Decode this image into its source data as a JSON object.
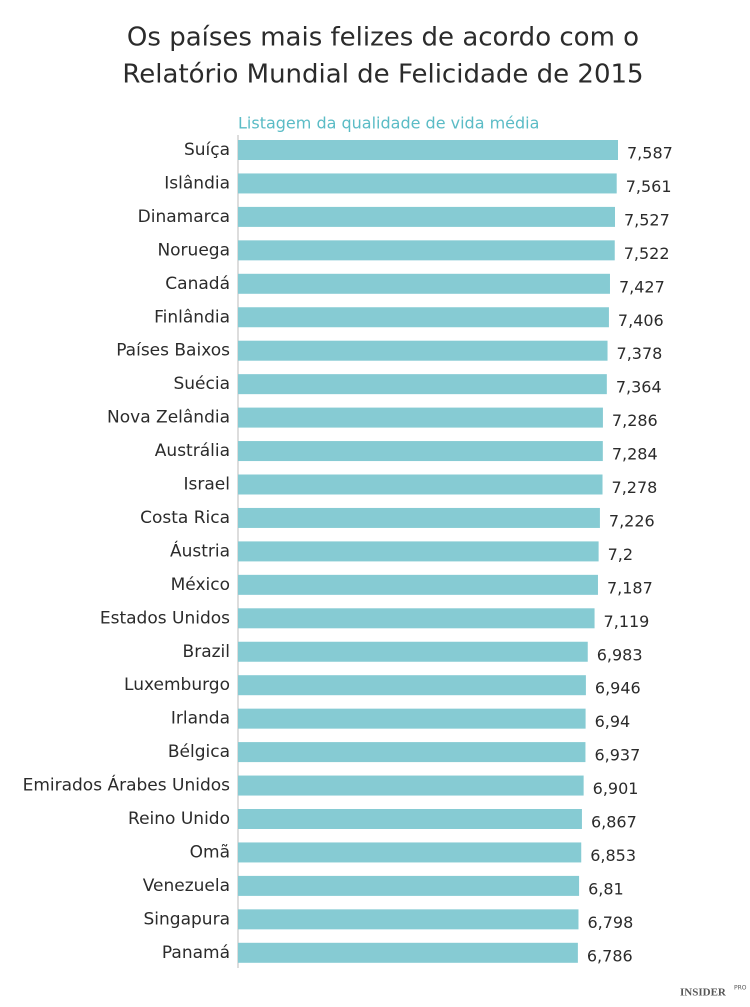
{
  "chart_data": {
    "type": "hbar",
    "title": [
      "Os países mais felizes de acordo com o",
      "Relatório Mundial de Felicidade de 2015"
    ],
    "subtitle": "Listagem da qualidade de vida média",
    "categories": [
      "Suíça",
      "Islândia",
      "Dinamarca",
      "Noruega",
      "Canadá",
      "Finlândia",
      "Países Baixos",
      "Suécia",
      "Nova Zelândia",
      "Austrália",
      "Israel",
      "Costa Rica",
      "Áustria",
      "México",
      "Estados Unidos",
      "Brazil",
      "Luxemburgo",
      "Irlanda",
      "Bélgica",
      "Emirados Árabes Unidos",
      "Reino Unido",
      "Omã",
      "Venezuela",
      "Singapura",
      "Panamá"
    ],
    "values": [
      7.587,
      7.561,
      7.527,
      7.522,
      7.427,
      7.406,
      7.378,
      7.364,
      7.286,
      7.284,
      7.278,
      7.226,
      7.2,
      7.187,
      7.119,
      6.983,
      6.946,
      6.94,
      6.937,
      6.901,
      6.867,
      6.853,
      6.81,
      6.798,
      6.786
    ],
    "value_labels": [
      "7,587",
      "7,561",
      "7,527",
      "7,522",
      "7,427",
      "7,406",
      "7,378",
      "7,364",
      "7,286",
      "7,284",
      "7,278",
      "7,226",
      "7,2",
      "7,187",
      "7,119",
      "6,983",
      "6,946",
      "6,94",
      "6,937",
      "6,901",
      "6,867",
      "6,853",
      "6,81",
      "6,798",
      "6,786"
    ],
    "color": "#86cbd3",
    "logo": [
      "INSIDER",
      "PRO"
    ]
  }
}
